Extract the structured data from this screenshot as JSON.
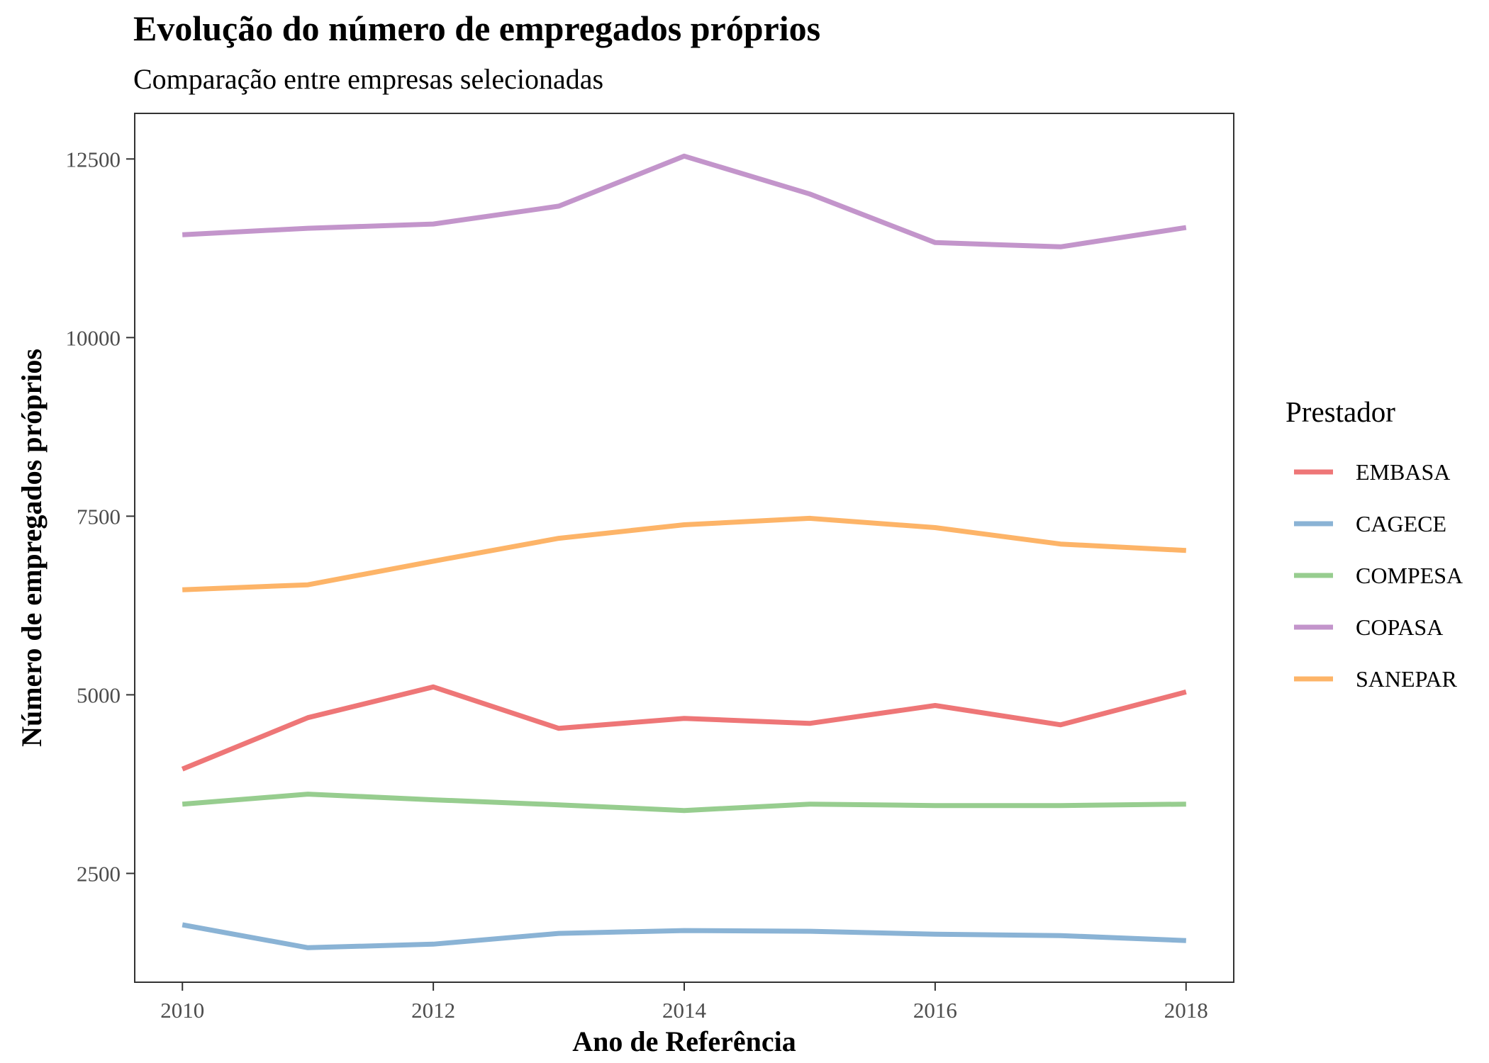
{
  "chart_data": {
    "type": "line",
    "title": "Evolução do número de empregados próprios",
    "subtitle": "Comparação entre empresas selecionadas",
    "xlabel": "Ano de Referência",
    "ylabel": "Número de empregados próprios",
    "x": [
      2010,
      2011,
      2012,
      2013,
      2014,
      2015,
      2016,
      2017,
      2018
    ],
    "xlim": [
      2009.62,
      2018.38
    ],
    "ylim": [
      977,
      13138
    ],
    "x_ticks": [
      2010,
      2012,
      2014,
      2016,
      2018
    ],
    "x_tick_labels": [
      "2010",
      "2012",
      "2014",
      "2016",
      "2018"
    ],
    "y_ticks": [
      2500,
      5000,
      7500,
      10000,
      12500
    ],
    "y_tick_labels": [
      "2500",
      "5000",
      "7500",
      "10000",
      "12500"
    ],
    "grid": false,
    "legend": {
      "title": "Prestador",
      "position": "right"
    },
    "series": [
      {
        "name": "EMBASA",
        "color": "#ee7677",
        "values": [
          3960,
          4680,
          5110,
          4530,
          4670,
          4600,
          4850,
          4580,
          5040
        ]
      },
      {
        "name": "CAGECE",
        "color": "#8ab3d5",
        "values": [
          1780,
          1460,
          1510,
          1660,
          1700,
          1690,
          1650,
          1630,
          1560
        ]
      },
      {
        "name": "COMPESA",
        "color": "#97cd8f",
        "values": [
          3470,
          3610,
          3530,
          3460,
          3380,
          3470,
          3450,
          3450,
          3470
        ]
      },
      {
        "name": "COPASA",
        "color": "#c395cb",
        "values": [
          11440,
          11530,
          11590,
          11840,
          12540,
          12010,
          11330,
          11270,
          11540
        ]
      },
      {
        "name": "SANEPAR",
        "color": "#fdb468",
        "values": [
          6470,
          6540,
          6870,
          7190,
          7380,
          7470,
          7340,
          7110,
          7020
        ]
      }
    ]
  }
}
